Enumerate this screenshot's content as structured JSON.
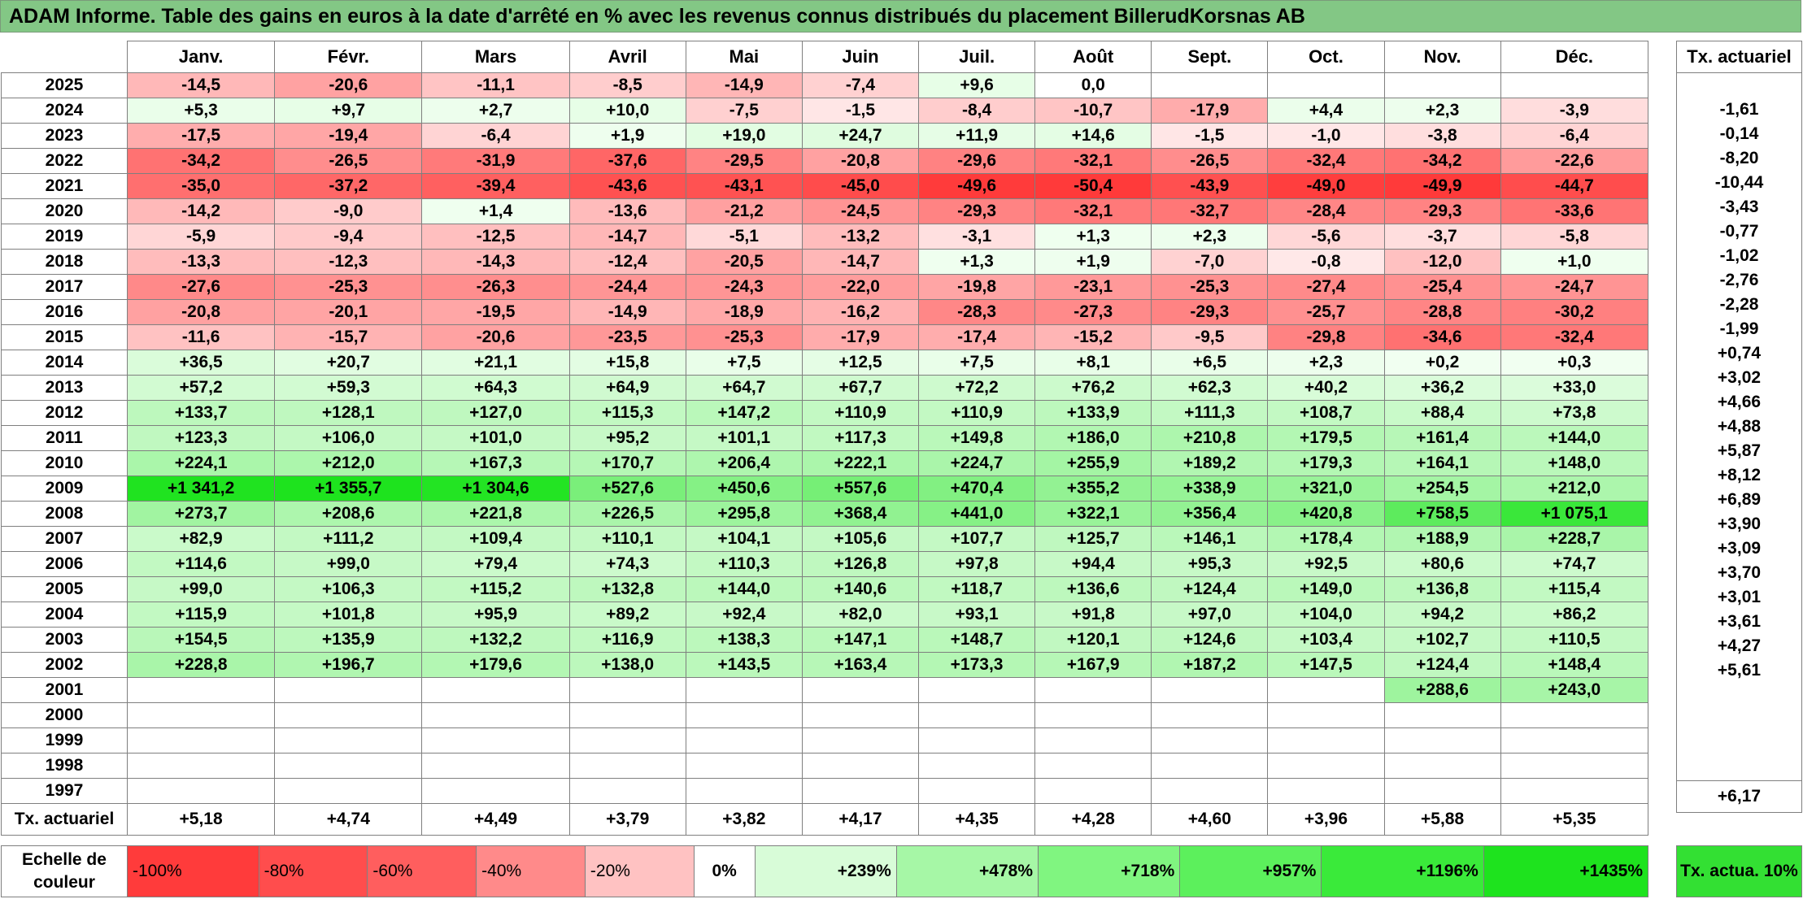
{
  "title": "ADAM Informe. Table des gains en euros à la date d'arrêté en % avec les revenus connus distribués du placement BillerudKorsnas AB",
  "chart_data": {
    "type": "table",
    "months": [
      "Janv.",
      "Févr.",
      "Mars",
      "Avril",
      "Mai",
      "Juin",
      "Juil.",
      "Août",
      "Sept.",
      "Oct.",
      "Nov.",
      "Déc."
    ],
    "tx_header": "Tx. actuariel",
    "rows": [
      {
        "year": "2025",
        "values": [
          "-14,5",
          "-20,6",
          "-11,1",
          "-8,5",
          "-14,9",
          "-7,4",
          "+9,6",
          "0,0",
          "",
          "",
          "",
          ""
        ],
        "tx": ""
      },
      {
        "year": "2024",
        "values": [
          "+5,3",
          "+9,7",
          "+2,7",
          "+10,0",
          "-7,5",
          "-1,5",
          "-8,4",
          "-10,7",
          "-17,9",
          "+4,4",
          "+2,3",
          "-3,9"
        ],
        "tx": "-1,61"
      },
      {
        "year": "2023",
        "values": [
          "-17,5",
          "-19,4",
          "-6,4",
          "+1,9",
          "+19,0",
          "+24,7",
          "+11,9",
          "+14,6",
          "-1,5",
          "-1,0",
          "-3,8",
          "-6,4"
        ],
        "tx": "-0,14"
      },
      {
        "year": "2022",
        "values": [
          "-34,2",
          "-26,5",
          "-31,9",
          "-37,6",
          "-29,5",
          "-20,8",
          "-29,6",
          "-32,1",
          "-26,5",
          "-32,4",
          "-34,2",
          "-22,6"
        ],
        "tx": "-8,20"
      },
      {
        "year": "2021",
        "values": [
          "-35,0",
          "-37,2",
          "-39,4",
          "-43,6",
          "-43,1",
          "-45,0",
          "-49,6",
          "-50,4",
          "-43,9",
          "-49,0",
          "-49,9",
          "-44,7"
        ],
        "tx": "-10,44"
      },
      {
        "year": "2020",
        "values": [
          "-14,2",
          "-9,0",
          "+1,4",
          "-13,6",
          "-21,2",
          "-24,5",
          "-29,3",
          "-32,1",
          "-32,7",
          "-28,4",
          "-29,3",
          "-33,6"
        ],
        "tx": "-3,43"
      },
      {
        "year": "2019",
        "values": [
          "-5,9",
          "-9,4",
          "-12,5",
          "-14,7",
          "-5,1",
          "-13,2",
          "-3,1",
          "+1,3",
          "+2,3",
          "-5,6",
          "-3,7",
          "-5,8"
        ],
        "tx": "-0,77"
      },
      {
        "year": "2018",
        "values": [
          "-13,3",
          "-12,3",
          "-14,3",
          "-12,4",
          "-20,5",
          "-14,7",
          "+1,3",
          "+1,9",
          "-7,0",
          "-0,8",
          "-12,0",
          "+1,0"
        ],
        "tx": "-1,02"
      },
      {
        "year": "2017",
        "values": [
          "-27,6",
          "-25,3",
          "-26,3",
          "-24,4",
          "-24,3",
          "-22,0",
          "-19,8",
          "-23,1",
          "-25,3",
          "-27,4",
          "-25,4",
          "-24,7"
        ],
        "tx": "-2,76"
      },
      {
        "year": "2016",
        "values": [
          "-20,8",
          "-20,1",
          "-19,5",
          "-14,9",
          "-18,9",
          "-16,2",
          "-28,3",
          "-27,3",
          "-29,3",
          "-25,7",
          "-28,8",
          "-30,2"
        ],
        "tx": "-2,28"
      },
      {
        "year": "2015",
        "values": [
          "-11,6",
          "-15,7",
          "-20,6",
          "-23,5",
          "-25,3",
          "-17,9",
          "-17,4",
          "-15,2",
          "-9,5",
          "-29,8",
          "-34,6",
          "-32,4"
        ],
        "tx": "-1,99"
      },
      {
        "year": "2014",
        "values": [
          "+36,5",
          "+20,7",
          "+21,1",
          "+15,8",
          "+7,5",
          "+12,5",
          "+7,5",
          "+8,1",
          "+6,5",
          "+2,3",
          "+0,2",
          "+0,3"
        ],
        "tx": "+0,74"
      },
      {
        "year": "2013",
        "values": [
          "+57,2",
          "+59,3",
          "+64,3",
          "+64,9",
          "+64,7",
          "+67,7",
          "+72,2",
          "+76,2",
          "+62,3",
          "+40,2",
          "+36,2",
          "+33,0"
        ],
        "tx": "+3,02"
      },
      {
        "year": "2012",
        "values": [
          "+133,7",
          "+128,1",
          "+127,0",
          "+115,3",
          "+147,2",
          "+110,9",
          "+110,9",
          "+133,9",
          "+111,3",
          "+108,7",
          "+88,4",
          "+73,8"
        ],
        "tx": "+4,66"
      },
      {
        "year": "2011",
        "values": [
          "+123,3",
          "+106,0",
          "+101,0",
          "+95,2",
          "+101,1",
          "+117,3",
          "+149,8",
          "+186,0",
          "+210,8",
          "+179,5",
          "+161,4",
          "+144,0"
        ],
        "tx": "+4,88"
      },
      {
        "year": "2010",
        "values": [
          "+224,1",
          "+212,0",
          "+167,3",
          "+170,7",
          "+206,4",
          "+222,1",
          "+224,7",
          "+255,9",
          "+189,2",
          "+179,3",
          "+164,1",
          "+148,0"
        ],
        "tx": "+5,87"
      },
      {
        "year": "2009",
        "values": [
          "+1 341,2",
          "+1 355,7",
          "+1 304,6",
          "+527,6",
          "+450,6",
          "+557,6",
          "+470,4",
          "+355,2",
          "+338,9",
          "+321,0",
          "+254,5",
          "+212,0"
        ],
        "tx": "+8,12"
      },
      {
        "year": "2008",
        "values": [
          "+273,7",
          "+208,6",
          "+221,8",
          "+226,5",
          "+295,8",
          "+368,4",
          "+441,0",
          "+322,1",
          "+356,4",
          "+420,8",
          "+758,5",
          "+1 075,1"
        ],
        "tx": "+6,89"
      },
      {
        "year": "2007",
        "values": [
          "+82,9",
          "+111,2",
          "+109,4",
          "+110,1",
          "+104,1",
          "+105,6",
          "+107,7",
          "+125,7",
          "+146,1",
          "+178,4",
          "+188,9",
          "+228,7"
        ],
        "tx": "+3,90"
      },
      {
        "year": "2006",
        "values": [
          "+114,6",
          "+99,0",
          "+79,4",
          "+74,3",
          "+110,3",
          "+126,8",
          "+97,8",
          "+94,4",
          "+95,3",
          "+92,5",
          "+80,6",
          "+74,7"
        ],
        "tx": "+3,09"
      },
      {
        "year": "2005",
        "values": [
          "+99,0",
          "+106,3",
          "+115,2",
          "+132,8",
          "+144,0",
          "+140,6",
          "+118,7",
          "+136,6",
          "+124,4",
          "+149,0",
          "+136,8",
          "+115,4"
        ],
        "tx": "+3,70"
      },
      {
        "year": "2004",
        "values": [
          "+115,9",
          "+101,8",
          "+95,9",
          "+89,2",
          "+92,4",
          "+82,0",
          "+93,1",
          "+91,8",
          "+97,0",
          "+104,0",
          "+94,2",
          "+86,2"
        ],
        "tx": "+3,01"
      },
      {
        "year": "2003",
        "values": [
          "+154,5",
          "+135,9",
          "+132,2",
          "+116,9",
          "+138,3",
          "+147,1",
          "+148,7",
          "+120,1",
          "+124,6",
          "+103,4",
          "+102,7",
          "+110,5"
        ],
        "tx": "+3,61"
      },
      {
        "year": "2002",
        "values": [
          "+228,8",
          "+196,7",
          "+179,6",
          "+138,0",
          "+143,5",
          "+163,4",
          "+173,3",
          "+167,9",
          "+187,2",
          "+147,5",
          "+124,4",
          "+148,4"
        ],
        "tx": "+4,27"
      },
      {
        "year": "2001",
        "values": [
          "",
          "",
          "",
          "",
          "",
          "",
          "",
          "",
          "",
          "",
          "+288,6",
          "+243,0"
        ],
        "tx": "+5,61"
      },
      {
        "year": "2000",
        "values": [
          "",
          "",
          "",
          "",
          "",
          "",
          "",
          "",
          "",
          "",
          "",
          ""
        ],
        "tx": ""
      },
      {
        "year": "1999",
        "values": [
          "",
          "",
          "",
          "",
          "",
          "",
          "",
          "",
          "",
          "",
          "",
          ""
        ],
        "tx": ""
      },
      {
        "year": "1998",
        "values": [
          "",
          "",
          "",
          "",
          "",
          "",
          "",
          "",
          "",
          "",
          "",
          ""
        ],
        "tx": ""
      },
      {
        "year": "1997",
        "values": [
          "",
          "",
          "",
          "",
          "",
          "",
          "",
          "",
          "",
          "",
          "",
          ""
        ],
        "tx": ""
      }
    ],
    "total_label": "Tx. actuariel",
    "totals": [
      "+5,18",
      "+4,74",
      "+4,49",
      "+3,79",
      "+3,82",
      "+4,17",
      "+4,35",
      "+4,28",
      "+4,60",
      "+3,96",
      "+5,88",
      "+5,35"
    ],
    "total_tx": "+6,17",
    "scale_label": "Echelle de couleur",
    "scale": [
      {
        "label": "-100%",
        "color": "#ff3b3b"
      },
      {
        "label": "-80%",
        "color": "#ff4d4d"
      },
      {
        "label": "-60%",
        "color": "#ff5e5e"
      },
      {
        "label": "-40%",
        "color": "#ff8a8a"
      },
      {
        "label": "-20%",
        "color": "#ffc2c2"
      },
      {
        "label": "0%",
        "color": "#ffffff"
      },
      {
        "label": "+239%",
        "color": "#d8fcd8"
      },
      {
        "label": "+478%",
        "color": "#a6f7a6"
      },
      {
        "label": "+718%",
        "color": "#80f580"
      },
      {
        "label": "+957%",
        "color": "#5cf05c"
      },
      {
        "label": "+1196%",
        "color": "#3aea3a"
      },
      {
        "label": "+1435%",
        "color": "#1ee31e"
      }
    ],
    "tx_scale_label": "Tx. actua. 10%",
    "tx_scale_color": "#33e033"
  }
}
